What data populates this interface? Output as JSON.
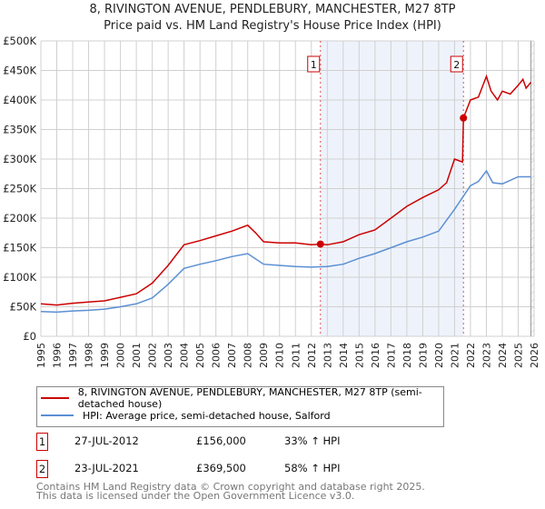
{
  "title": "8, RIVINGTON AVENUE, PENDLEBURY, MANCHESTER, M27 8TP",
  "subtitle": "Price paid vs. HM Land Registry's House Price Index (HPI)",
  "chart_data": {
    "type": "line",
    "title": "8, RIVINGTON AVENUE, PENDLEBURY, MANCHESTER, M27 8TP",
    "subtitle": "Price paid vs. HM Land Registry's House Price Index (HPI)",
    "xlim": [
      1995,
      2026
    ],
    "ylim": [
      0,
      500000
    ],
    "x_ticks": [
      "1995",
      "1996",
      "1997",
      "1998",
      "1999",
      "2000",
      "2001",
      "2002",
      "2003",
      "2004",
      "2005",
      "2006",
      "2007",
      "2008",
      "2009",
      "2010",
      "2011",
      "2012",
      "2013",
      "2014",
      "2015",
      "2016",
      "2017",
      "2018",
      "2019",
      "2020",
      "2021",
      "2022",
      "2023",
      "2024",
      "2025",
      "2026"
    ],
    "y_ticks": [
      {
        "v": 0,
        "l": "£0"
      },
      {
        "v": 50000,
        "l": "£50K"
      },
      {
        "v": 100000,
        "l": "£100K"
      },
      {
        "v": 150000,
        "l": "£150K"
      },
      {
        "v": 200000,
        "l": "£200K"
      },
      {
        "v": 250000,
        "l": "£250K"
      },
      {
        "v": 300000,
        "l": "£300K"
      },
      {
        "v": 350000,
        "l": "£350K"
      },
      {
        "v": 400000,
        "l": "£400K"
      },
      {
        "v": 450000,
        "l": "£450K"
      },
      {
        "v": 500000,
        "l": "£500K"
      }
    ],
    "grid": true,
    "series": [
      {
        "name": "8, RIVINGTON AVENUE, PENDLEBURY, MANCHESTER, M27 8TP (semi-detached house)",
        "color": "#cc0000",
        "x": [
          1995,
          1996,
          1997,
          1998,
          1999,
          2000,
          2001,
          2002,
          2003,
          2004,
          2005,
          2006,
          2007,
          2008,
          2008.5,
          2009,
          2010,
          2011,
          2012,
          2012.57,
          2013,
          2014,
          2015,
          2016,
          2017,
          2018,
          2019,
          2020,
          2020.5,
          2021,
          2021.5,
          2021.56,
          2022,
          2022.5,
          2023,
          2023.3,
          2023.7,
          2024,
          2024.5,
          2025,
          2025.3,
          2025.5,
          2025.8
        ],
        "y": [
          55000,
          53000,
          56000,
          58000,
          60000,
          66000,
          72000,
          90000,
          120000,
          155000,
          162000,
          170000,
          178000,
          188000,
          175000,
          160000,
          158000,
          158000,
          155000,
          156000,
          155000,
          160000,
          172000,
          180000,
          200000,
          220000,
          235000,
          248000,
          260000,
          300000,
          295000,
          369500,
          400000,
          405000,
          440000,
          415000,
          400000,
          415000,
          410000,
          425000,
          435000,
          420000,
          430000
        ]
      },
      {
        "name": "HPI: Average price, semi-detached house, Salford",
        "color": "#5b8fd4",
        "x": [
          1995,
          1996,
          1997,
          1998,
          1999,
          2000,
          2001,
          2002,
          2003,
          2004,
          2005,
          2006,
          2007,
          2008,
          2009,
          2010,
          2011,
          2012,
          2013,
          2014,
          2015,
          2016,
          2017,
          2018,
          2019,
          2020,
          2021,
          2021.5,
          2022,
          2022.5,
          2023,
          2023.4,
          2024,
          2025,
          2025.8
        ],
        "y": [
          42000,
          41000,
          43000,
          44000,
          46000,
          50000,
          55000,
          65000,
          88000,
          115000,
          122000,
          128000,
          135000,
          140000,
          122000,
          120000,
          118000,
          117000,
          118000,
          122000,
          132000,
          140000,
          150000,
          160000,
          168000,
          178000,
          215000,
          235000,
          255000,
          262000,
          280000,
          260000,
          258000,
          270000,
          270000
        ]
      }
    ],
    "sales": [
      {
        "label": "1",
        "x": 2012.57,
        "y": 156000,
        "date": "27-JUL-2012",
        "price": "£156,000",
        "hpi": "33% ↑ HPI"
      },
      {
        "label": "2",
        "x": 2021.56,
        "y": 369500,
        "date": "23-JUL-2021",
        "price": "£369,500",
        "hpi": "58% ↑ HPI"
      }
    ],
    "shade_range": [
      2012.57,
      2021.56
    ],
    "forecast_from": 2025.8
  },
  "footer": [
    "Contains HM Land Registry data © Crown copyright and database right 2025.",
    "This data is licensed under the Open Government Licence v3.0."
  ]
}
